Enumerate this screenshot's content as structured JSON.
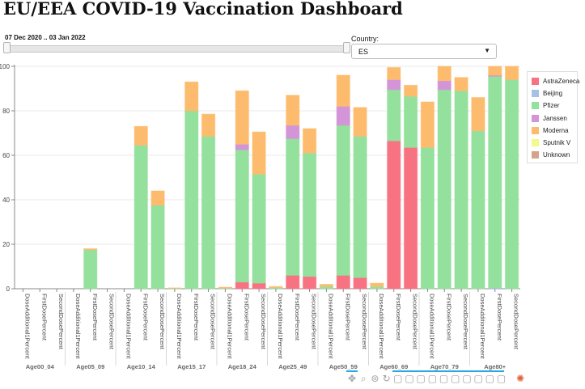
{
  "title": "EU/EEA COVID-19 Vaccination Dashboard",
  "date_range": {
    "label": "07 Dec 2020 .. 03 Jan 2022",
    "start_fraction": 0,
    "end_fraction": 1
  },
  "country": {
    "label": "Country:",
    "value": "ES"
  },
  "legend": [
    {
      "name": "AstraZeneca",
      "color": "#f87381"
    },
    {
      "name": "Beijing",
      "color": "#a6c1e6"
    },
    {
      "name": "Pfizer",
      "color": "#94e09d"
    },
    {
      "name": "Janssen",
      "color": "#d494d8"
    },
    {
      "name": "Moderna",
      "color": "#fdbc6d"
    },
    {
      "name": "Sputnik V",
      "color": "#f4f98a"
    },
    {
      "name": "Unknown",
      "color": "#d2a48b"
    }
  ],
  "chart_data": {
    "type": "bar",
    "stacked": true,
    "ylim": [
      0,
      100
    ],
    "yticks": [
      0,
      20,
      40,
      60,
      80,
      100
    ],
    "grid": true,
    "legend_position": "right",
    "subcategories": [
      "DoseAdditional1Percent",
      "FirstDosePercent",
      "SecondDosePercent"
    ],
    "groups": [
      {
        "name": "Age00_04",
        "bars": [
          {
            "AstraZeneca": 0,
            "Beijing": 0,
            "Pfizer": 0,
            "Janssen": 0,
            "Moderna": 0,
            "Sputnik V": 0,
            "Unknown": 0
          },
          {
            "AstraZeneca": 0,
            "Beijing": 0,
            "Pfizer": 0,
            "Janssen": 0,
            "Moderna": 0,
            "Sputnik V": 0,
            "Unknown": 0
          },
          {
            "AstraZeneca": 0,
            "Beijing": 0,
            "Pfizer": 0,
            "Janssen": 0,
            "Moderna": 0,
            "Sputnik V": 0,
            "Unknown": 0
          }
        ]
      },
      {
        "name": "Age05_09",
        "bars": [
          {
            "AstraZeneca": 0,
            "Beijing": 0,
            "Pfizer": 0,
            "Janssen": 0,
            "Moderna": 0,
            "Sputnik V": 0,
            "Unknown": 0
          },
          {
            "AstraZeneca": 0,
            "Beijing": 0,
            "Pfizer": 17.5,
            "Janssen": 0,
            "Moderna": 0.5,
            "Sputnik V": 0,
            "Unknown": 0
          },
          {
            "AstraZeneca": 0,
            "Beijing": 0,
            "Pfizer": 0,
            "Janssen": 0,
            "Moderna": 0,
            "Sputnik V": 0,
            "Unknown": 0
          }
        ]
      },
      {
        "name": "Age10_14",
        "bars": [
          {
            "AstraZeneca": 0,
            "Beijing": 0,
            "Pfizer": 0,
            "Janssen": 0,
            "Moderna": 0,
            "Sputnik V": 0,
            "Unknown": 0
          },
          {
            "AstraZeneca": 0,
            "Beijing": 0,
            "Pfizer": 64.5,
            "Janssen": 0,
            "Moderna": 8.5,
            "Sputnik V": 0,
            "Unknown": 0
          },
          {
            "AstraZeneca": 0,
            "Beijing": 0,
            "Pfizer": 37.5,
            "Janssen": 0,
            "Moderna": 6.5,
            "Sputnik V": 0,
            "Unknown": 0
          }
        ]
      },
      {
        "name": "Age15_17",
        "bars": [
          {
            "AstraZeneca": 0,
            "Beijing": 0,
            "Pfizer": 0.2,
            "Janssen": 0,
            "Moderna": 0.2,
            "Sputnik V": 0,
            "Unknown": 0
          },
          {
            "AstraZeneca": 0,
            "Beijing": 0,
            "Pfizer": 80,
            "Janssen": 0,
            "Moderna": 13,
            "Sputnik V": 0,
            "Unknown": 0
          },
          {
            "AstraZeneca": 0,
            "Beijing": 0,
            "Pfizer": 68.5,
            "Janssen": 0,
            "Moderna": 10,
            "Sputnik V": 0,
            "Unknown": 0
          }
        ]
      },
      {
        "name": "Age18_24",
        "bars": [
          {
            "AstraZeneca": 0,
            "Beijing": 0,
            "Pfizer": 0.3,
            "Janssen": 0,
            "Moderna": 0.4,
            "Sputnik V": 0,
            "Unknown": 0
          },
          {
            "AstraZeneca": 3,
            "Beijing": 0,
            "Pfizer": 59.5,
            "Janssen": 2.5,
            "Moderna": 24,
            "Sputnik V": 0,
            "Unknown": 0
          },
          {
            "AstraZeneca": 2.5,
            "Beijing": 0,
            "Pfizer": 49,
            "Janssen": 0,
            "Moderna": 19,
            "Sputnik V": 0,
            "Unknown": 0
          }
        ]
      },
      {
        "name": "Age25_49",
        "bars": [
          {
            "AstraZeneca": 0,
            "Beijing": 0,
            "Pfizer": 0.5,
            "Janssen": 0,
            "Moderna": 0.5,
            "Sputnik V": 0,
            "Unknown": 0
          },
          {
            "AstraZeneca": 6,
            "Beijing": 0,
            "Pfizer": 61.5,
            "Janssen": 6,
            "Moderna": 13.5,
            "Sputnik V": 0,
            "Unknown": 0
          },
          {
            "AstraZeneca": 5.5,
            "Beijing": 0,
            "Pfizer": 55.5,
            "Janssen": 0,
            "Moderna": 11,
            "Sputnik V": 0,
            "Unknown": 0
          }
        ]
      },
      {
        "name": "Age50_59",
        "bars": [
          {
            "AstraZeneca": 0,
            "Beijing": 0,
            "Pfizer": 1,
            "Janssen": 0,
            "Moderna": 1,
            "Sputnik V": 0,
            "Unknown": 0
          },
          {
            "AstraZeneca": 6,
            "Beijing": 0,
            "Pfizer": 67.5,
            "Janssen": 8.5,
            "Moderna": 14,
            "Sputnik V": 0,
            "Unknown": 0
          },
          {
            "AstraZeneca": 5,
            "Beijing": 0,
            "Pfizer": 63.5,
            "Janssen": 0,
            "Moderna": 13,
            "Sputnik V": 0,
            "Unknown": 0
          }
        ]
      },
      {
        "name": "Age60_69",
        "bars": [
          {
            "AstraZeneca": 0,
            "Beijing": 0,
            "Pfizer": 1,
            "Janssen": 0,
            "Moderna": 1.5,
            "Sputnik V": 0,
            "Unknown": 0
          },
          {
            "AstraZeneca": 66.5,
            "Beijing": 0,
            "Pfizer": 23,
            "Janssen": 4.5,
            "Moderna": 5.5,
            "Sputnik V": 0,
            "Unknown": 0
          },
          {
            "AstraZeneca": 63.5,
            "Beijing": 0,
            "Pfizer": 23,
            "Janssen": 0,
            "Moderna": 5,
            "Sputnik V": 0,
            "Unknown": 0
          }
        ]
      },
      {
        "name": "Age70_79",
        "bars": [
          {
            "AstraZeneca": 0,
            "Beijing": 0,
            "Pfizer": 63.5,
            "Janssen": 0,
            "Moderna": 20.5,
            "Sputnik V": 0,
            "Unknown": 0
          },
          {
            "AstraZeneca": 0,
            "Beijing": 0,
            "Pfizer": 89.5,
            "Janssen": 4,
            "Moderna": 6.5,
            "Sputnik V": 0,
            "Unknown": 0
          },
          {
            "AstraZeneca": 0,
            "Beijing": 0,
            "Pfizer": 89,
            "Janssen": 0,
            "Moderna": 6,
            "Sputnik V": 0,
            "Unknown": 0
          }
        ]
      },
      {
        "name": "Age80+",
        "bars": [
          {
            "AstraZeneca": 0,
            "Beijing": 0,
            "Pfizer": 71,
            "Janssen": 0,
            "Moderna": 15,
            "Sputnik V": 0,
            "Unknown": 0
          },
          {
            "AstraZeneca": 0,
            "Beijing": 0.5,
            "Pfizer": 95,
            "Janssen": 0.5,
            "Moderna": 4,
            "Sputnik V": 0,
            "Unknown": 0
          },
          {
            "AstraZeneca": 0,
            "Beijing": 0,
            "Pfizer": 94,
            "Janssen": 0,
            "Moderna": 6,
            "Sputnik V": 0,
            "Unknown": 0
          }
        ]
      }
    ]
  },
  "toolbar": [
    {
      "icon": "pan-icon",
      "glyph": "✥",
      "active": true
    },
    {
      "icon": "box-zoom-icon",
      "glyph": "⌕",
      "active": false
    },
    {
      "icon": "wheel-zoom-icon",
      "glyph": "⊚",
      "active": false
    },
    {
      "icon": "reset-icon",
      "glyph": "↻",
      "active": false
    },
    {
      "icon": "hover-icon",
      "glyph": "▢",
      "active": true
    },
    {
      "icon": "hover-icon",
      "glyph": "▢",
      "active": true
    },
    {
      "icon": "hover-icon",
      "glyph": "▢",
      "active": true
    },
    {
      "icon": "hover-icon",
      "glyph": "▢",
      "active": true
    },
    {
      "icon": "hover-icon",
      "glyph": "▢",
      "active": true
    },
    {
      "icon": "hover-icon",
      "glyph": "▢",
      "active": true
    },
    {
      "icon": "hover-icon",
      "glyph": "▢",
      "active": true
    },
    {
      "icon": "hover-icon",
      "glyph": "▢",
      "active": true
    },
    {
      "icon": "hover-icon",
      "glyph": "▢",
      "active": true
    },
    {
      "icon": "hover-icon",
      "glyph": "▢",
      "active": true
    },
    {
      "icon": "bokeh-logo-icon",
      "glyph": "✺",
      "active": false
    }
  ]
}
